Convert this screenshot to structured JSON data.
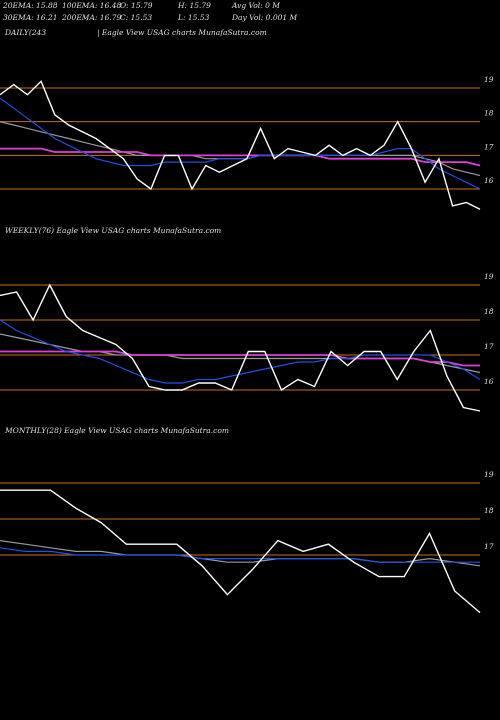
{
  "header": {
    "stats": [
      "20EMA: 15.88",
      "100EMA: 16.48",
      "O: 15.79",
      "H: 15.79",
      "Avg Vol: 0  M",
      "30EMA: 16.21",
      "200EMA: 16.79",
      "C: 15.53",
      "L: 15.53",
      "Day Vol: 0.001 M"
    ]
  },
  "chart_data": [
    {
      "type": "line",
      "title": "DAILY(243",
      "subtitle": "| Eagle   View   USAG charts MunafaSutra.com",
      "ylim": [
        15,
        20.5
      ],
      "yticks": [
        16,
        17,
        18,
        19
      ],
      "grid": true,
      "grid_color": "#c8701e",
      "series": [
        {
          "name": "Gray",
          "color": "#9a9a9a",
          "values": [
            18.0,
            17.9,
            17.8,
            17.7,
            17.6,
            17.5,
            17.4,
            17.3,
            17.2,
            17.1,
            17.0,
            17.0,
            17.0,
            17.0,
            17.0,
            16.9,
            16.9,
            16.9,
            16.9,
            17.0,
            17.0,
            17.0,
            17.0,
            17.0,
            17.0,
            17.0,
            17.0,
            17.0,
            17.0,
            17.0,
            17.0,
            16.9,
            16.8,
            16.6,
            16.5,
            16.4
          ]
        },
        {
          "name": "Pink",
          "color": "#e040d8",
          "values": [
            17.2,
            17.2,
            17.2,
            17.2,
            17.1,
            17.1,
            17.1,
            17.1,
            17.1,
            17.1,
            17.1,
            17.0,
            17.0,
            17.0,
            17.0,
            17.0,
            17.0,
            17.0,
            17.0,
            17.0,
            17.0,
            17.0,
            17.0,
            17.0,
            16.9,
            16.9,
            16.9,
            16.9,
            16.9,
            16.9,
            16.9,
            16.8,
            16.8,
            16.8,
            16.8,
            16.7
          ]
        },
        {
          "name": "Blue",
          "color": "#1f50e8",
          "values": [
            18.7,
            18.4,
            18.1,
            17.8,
            17.5,
            17.3,
            17.1,
            16.9,
            16.8,
            16.7,
            16.7,
            16.7,
            16.8,
            16.8,
            16.8,
            16.8,
            16.9,
            16.9,
            16.9,
            17.0,
            17.0,
            17.0,
            17.0,
            17.0,
            17.0,
            17.0,
            17.0,
            17.0,
            17.1,
            17.2,
            17.2,
            16.9,
            16.6,
            16.4,
            16.2,
            16.0
          ]
        },
        {
          "name": "Price",
          "color": "#ffffff",
          "values": [
            18.8,
            19.1,
            18.8,
            19.2,
            18.2,
            17.9,
            17.7,
            17.5,
            17.2,
            16.9,
            16.3,
            16.0,
            17.0,
            17.0,
            16.0,
            16.7,
            16.5,
            16.7,
            16.9,
            17.8,
            16.9,
            17.2,
            17.1,
            17.0,
            17.3,
            17.0,
            17.2,
            17.0,
            17.3,
            18.0,
            17.2,
            16.2,
            16.9,
            15.5,
            15.6,
            15.4
          ]
        }
      ]
    },
    {
      "type": "line",
      "title": "WEEKLY(76) Eagle   View   USAG charts MunafaSutra.com",
      "ylim": [
        15,
        20.5
      ],
      "yticks": [
        16,
        17,
        18,
        19
      ],
      "grid": true,
      "grid_color": "#c8701e",
      "series": [
        {
          "name": "Gray",
          "color": "#9a9a9a",
          "values": [
            17.6,
            17.5,
            17.4,
            17.3,
            17.2,
            17.1,
            17.1,
            17.0,
            17.0,
            17.0,
            17.0,
            16.9,
            16.9,
            16.9,
            16.9,
            16.9,
            16.9,
            16.9,
            16.9,
            16.9,
            16.9,
            16.9,
            16.9,
            16.9,
            16.9,
            16.9,
            16.8,
            16.7,
            16.6,
            16.5
          ]
        },
        {
          "name": "Pink",
          "color": "#e040d8",
          "values": [
            17.1,
            17.1,
            17.1,
            17.1,
            17.1,
            17.1,
            17.1,
            17.1,
            17.0,
            17.0,
            17.0,
            17.0,
            17.0,
            17.0,
            17.0,
            17.0,
            17.0,
            17.0,
            17.0,
            17.0,
            17.0,
            16.9,
            16.9,
            16.9,
            16.9,
            16.9,
            16.8,
            16.8,
            16.7,
            16.7
          ]
        },
        {
          "name": "Blue",
          "color": "#1f50e8",
          "values": [
            18.0,
            17.7,
            17.5,
            17.3,
            17.1,
            17.0,
            16.9,
            16.7,
            16.5,
            16.3,
            16.2,
            16.2,
            16.3,
            16.3,
            16.4,
            16.5,
            16.6,
            16.7,
            16.8,
            16.8,
            16.9,
            16.9,
            17.0,
            17.0,
            17.0,
            17.0,
            17.0,
            16.8,
            16.6,
            16.3
          ]
        },
        {
          "name": "Price",
          "color": "#ffffff",
          "values": [
            18.7,
            18.8,
            18.0,
            19.0,
            18.1,
            17.7,
            17.5,
            17.3,
            16.9,
            16.1,
            16.0,
            16.0,
            16.2,
            16.2,
            16.0,
            17.1,
            17.1,
            16.0,
            16.3,
            16.1,
            17.1,
            16.7,
            17.1,
            17.1,
            16.3,
            17.1,
            17.7,
            16.4,
            15.5,
            15.4
          ]
        }
      ]
    },
    {
      "type": "line",
      "title": "MONTHLY(28) Eagle   View   USAG charts MunafaSutra.com",
      "ylim": [
        15,
        20.3
      ],
      "yticks": [
        17,
        18,
        19
      ],
      "grid": true,
      "grid_color": "#c8701e",
      "series": [
        {
          "name": "Gray",
          "color": "#9a9a9a",
          "values": [
            17.4,
            17.3,
            17.2,
            17.1,
            17.1,
            17.0,
            17.0,
            17.0,
            16.9,
            16.8,
            16.8,
            16.9,
            16.9,
            16.9,
            16.9,
            16.8,
            16.8,
            16.9,
            16.8,
            16.7
          ]
        },
        {
          "name": "Blue",
          "color": "#1f50e8",
          "values": [
            17.2,
            17.1,
            17.1,
            17.0,
            17.0,
            17.0,
            17.0,
            17.0,
            16.9,
            16.9,
            16.9,
            16.9,
            16.9,
            16.9,
            16.9,
            16.8,
            16.8,
            16.8,
            16.8,
            16.8
          ]
        },
        {
          "name": "Price",
          "color": "#ffffff",
          "values": [
            18.8,
            18.8,
            18.8,
            18.3,
            17.9,
            17.3,
            17.3,
            17.3,
            16.7,
            15.9,
            16.6,
            17.4,
            17.1,
            17.3,
            16.8,
            16.4,
            16.4,
            17.6,
            16.0,
            15.4
          ]
        }
      ]
    }
  ]
}
